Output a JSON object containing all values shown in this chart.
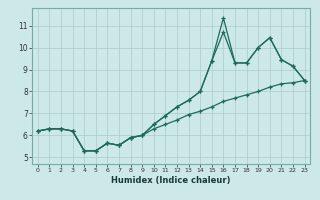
{
  "xlabel": "Humidex (Indice chaleur)",
  "bg_color": "#cce8e8",
  "grid_color": "#aacccc",
  "line_color": "#1e6b5e",
  "xlim": [
    -0.5,
    23.5
  ],
  "ylim": [
    4.7,
    11.8
  ],
  "xticks": [
    0,
    1,
    2,
    3,
    4,
    5,
    6,
    7,
    8,
    9,
    10,
    11,
    12,
    13,
    14,
    15,
    16,
    17,
    18,
    19,
    20,
    21,
    22,
    23
  ],
  "yticks": [
    5,
    6,
    7,
    8,
    9,
    10,
    11
  ],
  "lineA_y": [
    6.2,
    6.3,
    6.3,
    6.2,
    5.3,
    5.3,
    5.65,
    5.55,
    5.9,
    6.0,
    6.3,
    6.5,
    6.7,
    6.95,
    7.1,
    7.3,
    7.55,
    7.7,
    7.85,
    8.0,
    8.2,
    8.35,
    8.4,
    8.5
  ],
  "lineB_y": [
    6.2,
    6.3,
    6.3,
    6.2,
    5.3,
    5.3,
    5.65,
    5.55,
    5.9,
    6.0,
    6.5,
    6.9,
    7.3,
    7.6,
    8.0,
    9.4,
    10.7,
    9.3,
    9.3,
    10.0,
    10.45,
    9.45,
    9.15,
    8.5
  ],
  "lineC_y": [
    6.2,
    6.3,
    6.3,
    6.2,
    5.3,
    5.3,
    5.65,
    5.55,
    5.9,
    6.0,
    6.5,
    6.9,
    7.3,
    7.6,
    8.0,
    9.4,
    11.35,
    9.3,
    9.3,
    10.0,
    10.45,
    9.45,
    9.15,
    8.5
  ]
}
